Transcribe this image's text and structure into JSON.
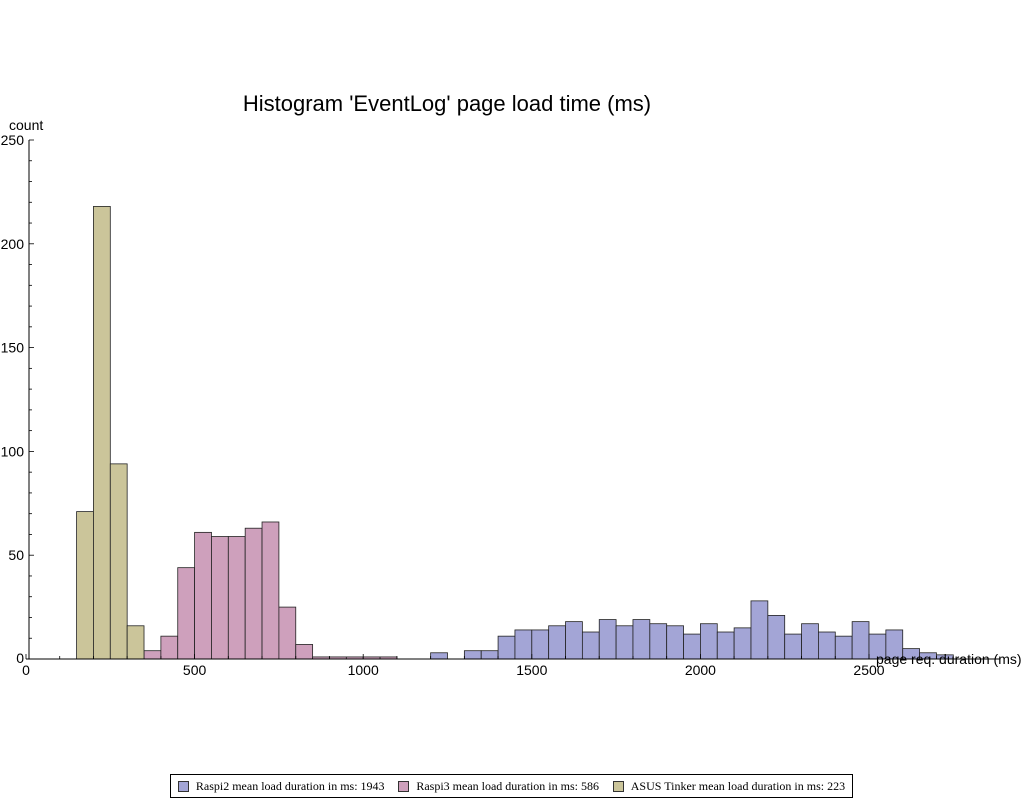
{
  "chart_data": {
    "type": "bar",
    "title": "Histogram 'EventLog' page load time (ms)",
    "xlabel": "page req. duration (ms)",
    "ylabel": "count",
    "xlim": [
      0,
      2650
    ],
    "ylim": [
      0,
      250
    ],
    "x_ticks": [
      "0",
      "500",
      "1000",
      "1500",
      "2000",
      "2500"
    ],
    "y_ticks": [
      "0",
      "50",
      "100",
      "150",
      "200",
      "250"
    ],
    "bin_width": 50,
    "grid": false,
    "legend_position": "bottom",
    "series": [
      {
        "name": "Raspi2 mean load duration in ms: 1943",
        "color": "#a3a5d6",
        "bins": [
          [
            1200,
            3
          ],
          [
            1300,
            4
          ],
          [
            1350,
            4
          ],
          [
            1400,
            11
          ],
          [
            1450,
            14
          ],
          [
            1500,
            14
          ],
          [
            1550,
            16
          ],
          [
            1600,
            18
          ],
          [
            1650,
            13
          ],
          [
            1700,
            19
          ],
          [
            1750,
            16
          ],
          [
            1800,
            19
          ],
          [
            1850,
            17
          ],
          [
            1900,
            16
          ],
          [
            1950,
            12
          ],
          [
            2000,
            17
          ],
          [
            2050,
            13
          ],
          [
            2100,
            15
          ],
          [
            2150,
            28
          ],
          [
            2200,
            21
          ],
          [
            2250,
            12
          ],
          [
            2300,
            17
          ],
          [
            2350,
            13
          ],
          [
            2400,
            11
          ],
          [
            2450,
            18
          ],
          [
            2500,
            12
          ],
          [
            2550,
            14
          ],
          [
            2600,
            5
          ],
          [
            2650,
            3
          ],
          [
            2700,
            2
          ]
        ]
      },
      {
        "name": "Raspi3 mean load duration in ms: 586",
        "color": "#cea0bc",
        "bins": [
          [
            350,
            4
          ],
          [
            400,
            11
          ],
          [
            450,
            44
          ],
          [
            500,
            61
          ],
          [
            550,
            59
          ],
          [
            600,
            59
          ],
          [
            650,
            63
          ],
          [
            700,
            66
          ],
          [
            750,
            25
          ],
          [
            800,
            7
          ],
          [
            850,
            1
          ],
          [
            900,
            1
          ],
          [
            950,
            1
          ],
          [
            1000,
            1
          ],
          [
            1050,
            1
          ]
        ]
      },
      {
        "name": "ASUS Tinker mean load duration in ms: 223",
        "color": "#cbc59a",
        "bins": [
          [
            150,
            71
          ],
          [
            200,
            218
          ],
          [
            250,
            94
          ],
          [
            300,
            16
          ]
        ]
      }
    ]
  }
}
